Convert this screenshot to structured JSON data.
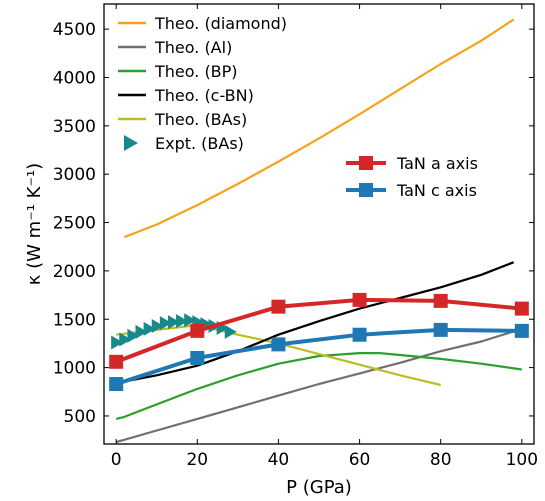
{
  "chart_data": {
    "type": "line",
    "xlabel": "P (GPa)",
    "ylabel": "κ (W m⁻¹ K⁻¹)",
    "xlim": [
      -3,
      103
    ],
    "ylim": [
      210,
      4760
    ],
    "xticks": [
      0,
      20,
      40,
      60,
      80,
      100
    ],
    "yticks": [
      500,
      1000,
      1500,
      2000,
      2500,
      3000,
      3500,
      4000,
      4500
    ],
    "grid": false,
    "legend_placement": [
      "top-left",
      "center-right"
    ],
    "series": [
      {
        "name": "Theo. (diamond)",
        "color": "#f5a31a",
        "style": "line",
        "x": [
          2,
          10,
          20,
          30,
          40,
          50,
          60,
          70,
          80,
          90,
          98
        ],
        "y": [
          2350,
          2480,
          2680,
          2900,
          3130,
          3370,
          3620,
          3880,
          4140,
          4380,
          4600
        ]
      },
      {
        "name": "Theo. (Al)",
        "color": "#707070",
        "style": "line",
        "x": [
          0,
          10,
          20,
          30,
          40,
          50,
          60,
          70,
          80,
          90,
          100
        ],
        "y": [
          230,
          350,
          470,
          590,
          710,
          830,
          940,
          1050,
          1170,
          1270,
          1400
        ]
      },
      {
        "name": "Theo. (BP)",
        "color": "#2ca02c",
        "style": "line",
        "x": [
          0,
          2,
          10,
          20,
          30,
          40,
          50,
          60,
          65,
          70,
          80,
          90,
          100
        ],
        "y": [
          470,
          490,
          620,
          780,
          920,
          1040,
          1120,
          1150,
          1150,
          1130,
          1090,
          1040,
          980
        ]
      },
      {
        "name": "Theo. (c-BN)",
        "color": "#000000",
        "style": "line",
        "x": [
          0,
          10,
          20,
          30,
          40,
          50,
          60,
          70,
          80,
          90,
          98
        ],
        "y": [
          840,
          920,
          1020,
          1170,
          1340,
          1480,
          1610,
          1720,
          1830,
          1960,
          2090
        ]
      },
      {
        "name": "Theo. (BAs)",
        "color": "#bcbd22",
        "style": "line",
        "x": [
          0,
          10,
          20,
          30,
          40,
          50,
          60,
          70,
          80
        ],
        "y": [
          1340,
          1390,
          1440,
          1340,
          1250,
          1140,
          1030,
          920,
          820
        ]
      },
      {
        "name": "Expt. (BAs)",
        "color": "#17898a",
        "style": "triangle-right",
        "x": [
          0,
          2,
          4,
          6,
          8,
          10,
          12,
          14,
          16,
          18,
          20,
          22,
          24,
          26,
          28
        ],
        "y": [
          1260,
          1290,
          1330,
          1370,
          1400,
          1430,
          1460,
          1470,
          1480,
          1490,
          1470,
          1450,
          1430,
          1410,
          1370
        ]
      },
      {
        "name": "TaN a axis",
        "color": "#d62728",
        "style": "line-square",
        "x": [
          0,
          20,
          40,
          60,
          80,
          100
        ],
        "y": [
          1060,
          1380,
          1630,
          1700,
          1690,
          1610
        ]
      },
      {
        "name": "TaN c axis",
        "color": "#1f77b4",
        "style": "line-square",
        "x": [
          0,
          20,
          40,
          60,
          80,
          100
        ],
        "y": [
          830,
          1100,
          1240,
          1340,
          1390,
          1380
        ]
      }
    ]
  }
}
